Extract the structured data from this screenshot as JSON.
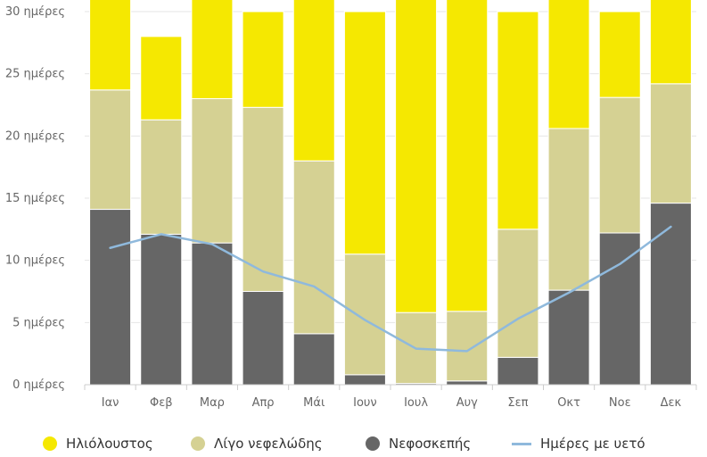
{
  "chart_data": {
    "type": "bar",
    "stacked": true,
    "categories": [
      "Ιαν",
      "Φεβ",
      "Μαρ",
      "Απρ",
      "Μάι",
      "Ιουν",
      "Ιουλ",
      "Αυγ",
      "Σεπ",
      "Οκτ",
      "Νοε",
      "Δεκ"
    ],
    "y_ticks": [
      "0 ημέρες",
      "5 ημέρες",
      "10 ημέρες",
      "15 ημέρες",
      "20 ημέρες",
      "25 ημέρες",
      "30 ημέρες"
    ],
    "ylim": [
      0,
      30
    ],
    "grid": true,
    "legend_position": "bottom",
    "series": [
      {
        "name": "Νεφοσκεπής",
        "color": "#666666",
        "values": [
          14.1,
          12.1,
          11.4,
          7.5,
          4.1,
          0.8,
          0.1,
          0.3,
          2.2,
          7.6,
          12.2,
          14.6
        ]
      },
      {
        "name": "Λίγο νεφελώδης",
        "color": "#d5d193",
        "values": [
          9.6,
          9.2,
          11.6,
          14.8,
          13.9,
          9.7,
          5.7,
          5.6,
          10.3,
          13.0,
          10.9,
          9.6
        ]
      },
      {
        "name": "Ηλιόλουστος",
        "color": "#f5e801",
        "values": [
          7.3,
          6.7,
          8.0,
          7.7,
          13.0,
          19.5,
          25.2,
          25.1,
          17.5,
          10.4,
          6.9,
          6.8
        ]
      }
    ],
    "line_series": {
      "name": "Ημέρες με υετό",
      "color": "#8fb9dc",
      "values": [
        11.0,
        12.1,
        11.3,
        9.1,
        7.9,
        5.2,
        2.9,
        2.7,
        5.3,
        7.4,
        9.7,
        12.7
      ]
    },
    "legend": [
      {
        "name": "Ηλιόλουστος",
        "color": "#f5e801",
        "marker": "dot"
      },
      {
        "name": "Λίγο νεφελώδης",
        "color": "#d5d193",
        "marker": "dot"
      },
      {
        "name": "Νεφοσκεπής",
        "color": "#666666",
        "marker": "dot"
      },
      {
        "name": "Ημέρες με υετό",
        "color": "#8fb9dc",
        "marker": "line"
      }
    ]
  }
}
